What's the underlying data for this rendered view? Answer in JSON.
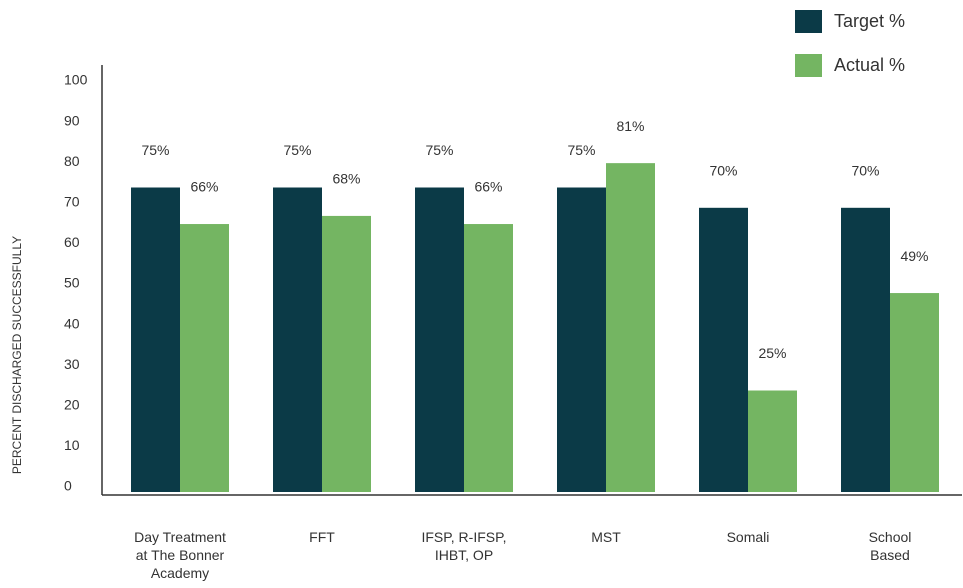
{
  "chart_data": {
    "type": "bar",
    "y_label": "PERCENT DISCHARGED SUCCESSFULLY",
    "categories": [
      "Day Treatment\nat The Bonner\nAcademy",
      "FFT",
      "IFSP, R-IFSP,\nIHBT, OP",
      "MST",
      "Somali",
      "School\nBased"
    ],
    "series": [
      {
        "name": "Target %",
        "color": "#0b3a47",
        "values": [
          75,
          75,
          75,
          75,
          70,
          70
        ],
        "value_labels": [
          "75%",
          "75%",
          "75%",
          "75%",
          "70%",
          "70%"
        ]
      },
      {
        "name": "Actual %",
        "color": "#74b562",
        "values": [
          66,
          68,
          66,
          81,
          25,
          49
        ],
        "value_labels": [
          "66%",
          "68%",
          "66%",
          "81%",
          "25%",
          "49%"
        ]
      }
    ],
    "ylim": [
      0,
      100
    ],
    "yticks": [
      0,
      10,
      20,
      30,
      40,
      50,
      60,
      70,
      80,
      90,
      100
    ],
    "legend": "top-right"
  }
}
